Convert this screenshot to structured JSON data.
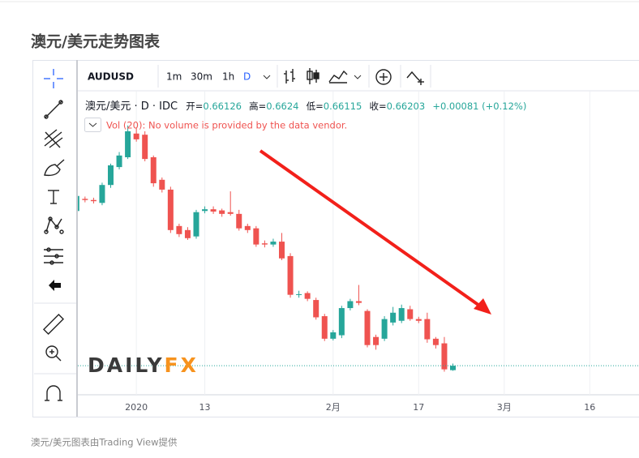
{
  "chart_data": {
    "type": "candlestick",
    "title": "澳元/美元走势图表",
    "symbol": "AUDUSD",
    "intervals": [
      "1m",
      "30m",
      "1h",
      "D"
    ],
    "legend_name": "澳元/美元 · D · IDC",
    "ohlc_labels": [
      "开=",
      "高=",
      "低=",
      "收="
    ],
    "change": "+0.00081 (+0.12%)",
    "volume_note": "Vol (20): No volume is provided by the data vendor.",
    "watermark": [
      "DAILY",
      "FX"
    ],
    "footer": "澳元/美元图表由Trading View提供",
    "up_color": "#26a69a",
    "down_color": "#ef5350",
    "ylim": [
      0.657,
      0.7096
    ],
    "categories": [
      null,
      null,
      null,
      null,
      null,
      null,
      null,
      "2020",
      null,
      null,
      null,
      null,
      null,
      null,
      null,
      "13",
      null,
      null,
      null,
      null,
      null,
      null,
      null,
      null,
      null,
      null,
      null,
      null,
      null,
      null,
      "2月",
      null,
      null,
      null,
      null,
      null,
      null,
      null,
      null,
      null,
      "17",
      null,
      null,
      null,
      null,
      null,
      null,
      null,
      null,
      null,
      "3月",
      null,
      null,
      null,
      null,
      null,
      null,
      null,
      null,
      null,
      "16"
    ],
    "open": [
      0.6888,
      0.6909,
      0.6907,
      0.6902,
      0.6933,
      0.6964,
      0.6981,
      0.7022,
      0.702,
      0.6981,
      0.6942,
      0.6925,
      0.6862,
      0.6855,
      0.6844,
      0.6888,
      0.6891,
      0.6889,
      0.6886,
      0.6883,
      0.6862,
      0.6858,
      0.6832,
      0.683,
      0.6835,
      0.681,
      0.6743,
      0.6746,
      0.6734,
      0.6706,
      0.6667,
      0.6673,
      0.672,
      0.6732,
      0.6715,
      0.667,
      0.6667,
      0.6695,
      0.6698,
      0.6718,
      0.6701,
      0.6701,
      0.6667,
      0.6659,
      0.66126,
      null,
      null,
      null,
      null,
      null,
      null,
      null,
      null,
      null,
      null,
      null,
      null,
      null,
      null,
      null,
      null
    ],
    "high": [
      0.692,
      0.6913,
      0.6911,
      0.6937,
      0.697,
      0.699,
      0.7036,
      0.7032,
      0.7026,
      0.6984,
      0.6946,
      0.693,
      0.6866,
      0.686,
      0.689,
      0.6896,
      0.6896,
      0.6892,
      0.6922,
      0.689,
      0.6866,
      0.6862,
      0.6837,
      0.684,
      0.685,
      0.6815,
      0.675,
      0.6749,
      0.6738,
      0.671,
      0.6682,
      0.6724,
      0.6736,
      0.676,
      0.6718,
      0.6674,
      0.6706,
      0.6722,
      0.6726,
      0.6724,
      0.6705,
      0.6712,
      0.667,
      0.667,
      0.6624,
      null,
      null,
      null,
      null,
      null,
      null,
      null,
      null,
      null,
      null,
      null,
      null,
      null,
      null,
      null,
      null
    ],
    "low": [
      0.6884,
      0.6903,
      0.6901,
      0.6898,
      0.6928,
      0.696,
      0.6978,
      0.7008,
      0.6974,
      0.693,
      0.692,
      0.685,
      0.6843,
      0.6838,
      0.684,
      0.6884,
      0.6883,
      0.6878,
      0.688,
      0.6854,
      0.685,
      0.6826,
      0.6825,
      0.6826,
      0.6803,
      0.6738,
      0.6738,
      0.6732,
      0.67,
      0.6663,
      0.6664,
      0.6668,
      0.6716,
      0.6725,
      0.6652,
      0.6648,
      0.6663,
      0.669,
      0.6694,
      0.6698,
      0.6694,
      0.666,
      0.665,
      0.661,
      0.66115,
      null,
      null,
      null,
      null,
      null,
      null,
      null,
      null,
      null,
      null,
      null,
      null,
      null,
      null,
      null,
      null
    ],
    "close": [
      0.6914,
      0.6907,
      0.6905,
      0.6933,
      0.6967,
      0.6984,
      0.7026,
      0.7012,
      0.6978,
      0.6936,
      0.6925,
      0.6855,
      0.6848,
      0.6841,
      0.6886,
      0.6891,
      0.6887,
      0.6883,
      0.6883,
      0.6858,
      0.6855,
      0.683,
      0.683,
      0.6835,
      0.6806,
      0.6743,
      0.6744,
      0.6736,
      0.6704,
      0.6667,
      0.6678,
      0.672,
      0.6732,
      0.6729,
      0.6656,
      0.6656,
      0.6701,
      0.6712,
      0.672,
      0.6701,
      0.6698,
      0.6666,
      0.6656,
      0.6614,
      0.66203,
      null,
      null,
      null,
      null,
      null,
      null,
      null,
      null,
      null,
      null,
      null,
      null,
      null,
      null,
      null,
      null
    ]
  }
}
